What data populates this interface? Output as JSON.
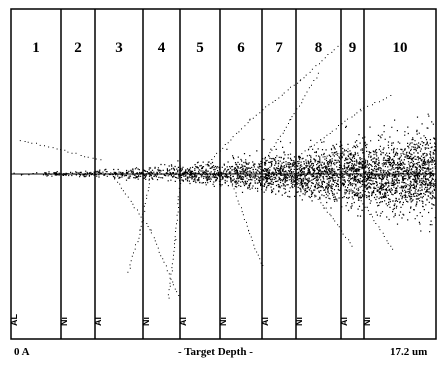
{
  "axis": {
    "start_label": "0 A",
    "title": "- Target Depth -",
    "end_label": "17.2 um"
  },
  "layers": [
    {
      "number": "1",
      "material": "AL"
    },
    {
      "number": "2",
      "material": "Ni"
    },
    {
      "number": "3",
      "material": "Al"
    },
    {
      "number": "4",
      "material": "Ni"
    },
    {
      "number": "5",
      "material": "Al"
    },
    {
      "number": "6",
      "material": "Ni"
    },
    {
      "number": "7",
      "material": "Al"
    },
    {
      "number": "8",
      "material": "Ni"
    },
    {
      "number": "9",
      "material": "Al"
    },
    {
      "number": "10",
      "material": "Ni"
    }
  ],
  "colors": {
    "ink": "#000000",
    "background": "#ffffff"
  }
}
